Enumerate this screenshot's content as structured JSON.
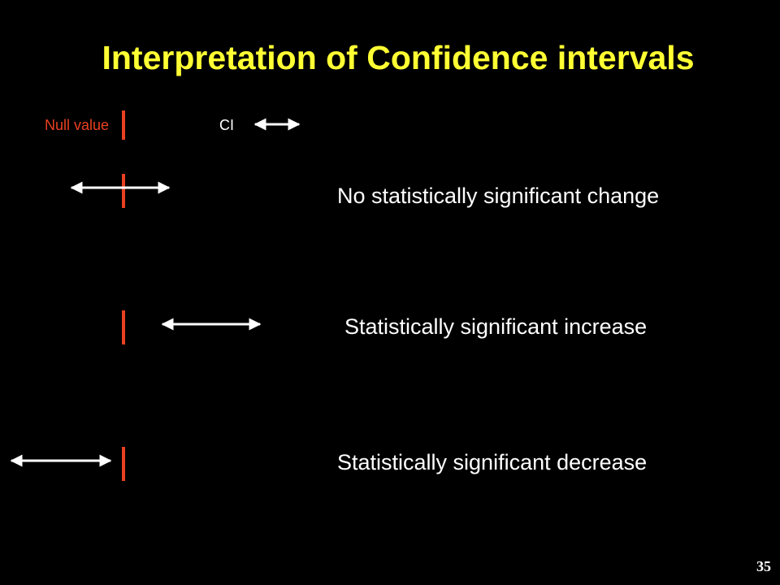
{
  "title": "Interpretation of Confidence intervals",
  "legend": {
    "null_value": "Null value",
    "ci": "CI"
  },
  "rows": [
    {
      "label": "No statistically significant change"
    },
    {
      "label": "Statistically significant increase"
    },
    {
      "label": "Statistically significant decrease"
    }
  ],
  "page_number": "35"
}
